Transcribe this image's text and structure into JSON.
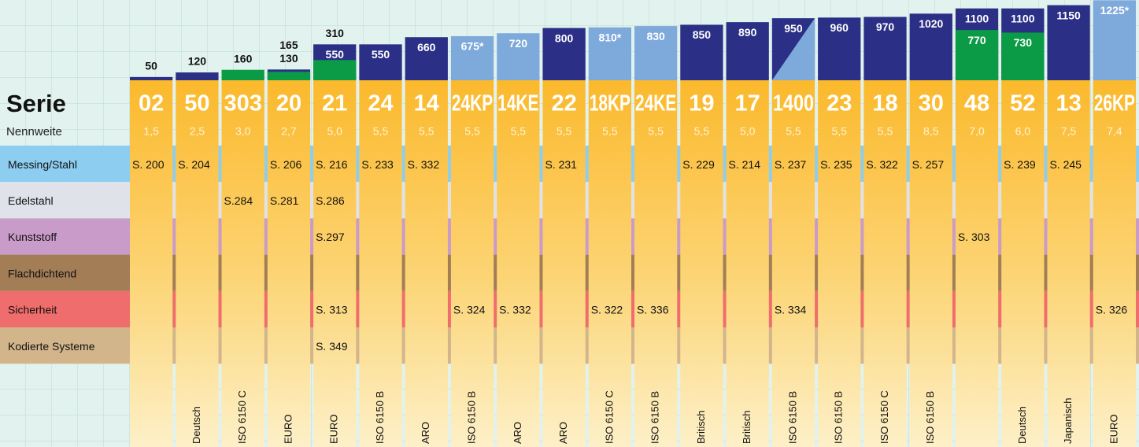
{
  "title": "Serie",
  "subtitle": "Nennweite",
  "rows": [
    "Messing/Stahl",
    "Edelstahl",
    "Kunststoff",
    "Flachdichtend",
    "Sicherheit",
    "Kodierte Systeme"
  ],
  "columns": [
    {
      "series": "02",
      "value": "50",
      "kind": "dark",
      "nennweite": "1,5",
      "refs": [
        "S. 200",
        null,
        null,
        null,
        null,
        null
      ],
      "standard": null
    },
    {
      "series": "50",
      "value": "120",
      "kind": "dark",
      "nennweite": "2,5",
      "refs": [
        "S. 204",
        null,
        null,
        null,
        null,
        null
      ],
      "standard": "Deutsch"
    },
    {
      "series": "303",
      "value": "160",
      "kind": "green",
      "nennweite": "3,0",
      "refs": [
        null,
        "S.284",
        null,
        null,
        null,
        null
      ],
      "standard": "ISO 6150 C"
    },
    {
      "series": "20",
      "value": "165",
      "value2": "130",
      "kind": "dark",
      "nennweite": "2,7",
      "refs": [
        "S. 206",
        "S.281",
        null,
        null,
        null,
        null
      ],
      "standard": "EURO"
    },
    {
      "series": "21",
      "value": "550",
      "value2": "310",
      "kind": "dark",
      "nennweite": "5,0",
      "refs": [
        "S. 216",
        "S.286",
        "S.297",
        null,
        "S. 313",
        "S. 349"
      ],
      "standard": "EURO"
    },
    {
      "series": "24",
      "value": "550",
      "kind": "dark",
      "nennweite": "5,5",
      "refs": [
        "S. 233",
        null,
        null,
        null,
        null,
        null
      ],
      "standard": "ISO 6150 B"
    },
    {
      "series": "14",
      "value": "660",
      "kind": "dark",
      "nennweite": "5,5",
      "refs": [
        "S. 332",
        null,
        null,
        null,
        null,
        null
      ],
      "standard": "ARO"
    },
    {
      "series": "24KP",
      "value": "675*",
      "kind": "light",
      "nennweite": "5,5",
      "refs": [
        null,
        null,
        null,
        null,
        "S. 324",
        null
      ],
      "standard": "ISO 6150 B"
    },
    {
      "series": "14KE",
      "value": "720",
      "kind": "light",
      "nennweite": "5,5",
      "refs": [
        null,
        null,
        null,
        null,
        "S. 332",
        null
      ],
      "standard": "ARO"
    },
    {
      "series": "22",
      "value": "800",
      "kind": "dark",
      "nennweite": "5,5",
      "refs": [
        "S. 231",
        null,
        null,
        null,
        null,
        null
      ],
      "standard": "ARO"
    },
    {
      "series": "18KP",
      "value": "810*",
      "kind": "light",
      "nennweite": "5,5",
      "refs": [
        null,
        null,
        null,
        null,
        "S. 322",
        null
      ],
      "standard": "ISO 6150 C"
    },
    {
      "series": "24KE",
      "value": "830",
      "kind": "light",
      "nennweite": "5,5",
      "refs": [
        null,
        null,
        null,
        null,
        "S. 336",
        null
      ],
      "standard": "ISO 6150 B"
    },
    {
      "series": "19",
      "value": "850",
      "kind": "dark",
      "nennweite": "5,5",
      "refs": [
        "S. 229",
        null,
        null,
        null,
        null,
        null
      ],
      "standard": "Britisch"
    },
    {
      "series": "17",
      "value": "890",
      "kind": "dark",
      "nennweite": "5,0",
      "refs": [
        "S. 214",
        null,
        null,
        null,
        null,
        null
      ],
      "standard": "Britisch"
    },
    {
      "series": "1400",
      "value": "950",
      "kind": "split",
      "nennweite": "5,5",
      "refs": [
        "S. 237",
        null,
        null,
        null,
        "S. 334",
        null
      ],
      "standard": "ISO 6150 B"
    },
    {
      "series": "23",
      "value": "960",
      "kind": "dark",
      "nennweite": "5,5",
      "refs": [
        "S. 235",
        null,
        null,
        null,
        null,
        null
      ],
      "standard": "ISO 6150 B"
    },
    {
      "series": "18",
      "value": "970",
      "kind": "dark",
      "nennweite": "5,5",
      "refs": [
        "S. 322",
        null,
        null,
        null,
        null,
        null
      ],
      "standard": "ISO 6150 C"
    },
    {
      "series": "30",
      "value": "1020",
      "kind": "dark",
      "nennweite": "8,5",
      "refs": [
        "S. 257",
        null,
        null,
        null,
        null,
        null
      ],
      "standard": "ISO 6150 B"
    },
    {
      "series": "48",
      "value": "1100",
      "value2": "770",
      "kind": "dark",
      "nennweite": "7,0",
      "refs": [
        null,
        null,
        "S. 303",
        null,
        null,
        null
      ],
      "standard": null
    },
    {
      "series": "52",
      "value": "1100",
      "value2": "730",
      "kind": "dark",
      "nennweite": "6,0",
      "refs": [
        "S. 239",
        null,
        null,
        null,
        null,
        null
      ],
      "standard": "Deutsch"
    },
    {
      "series": "13",
      "value": "1150",
      "kind": "dark",
      "nennweite": "7,5",
      "refs": [
        "S. 245",
        null,
        null,
        null,
        null,
        null
      ],
      "standard": "Japanisch"
    },
    {
      "series": "26KP",
      "value": "1225*",
      "kind": "light",
      "nennweite": "7,4",
      "refs": [
        null,
        null,
        null,
        null,
        "S. 326",
        null
      ],
      "standard": "EURO"
    }
  ]
}
